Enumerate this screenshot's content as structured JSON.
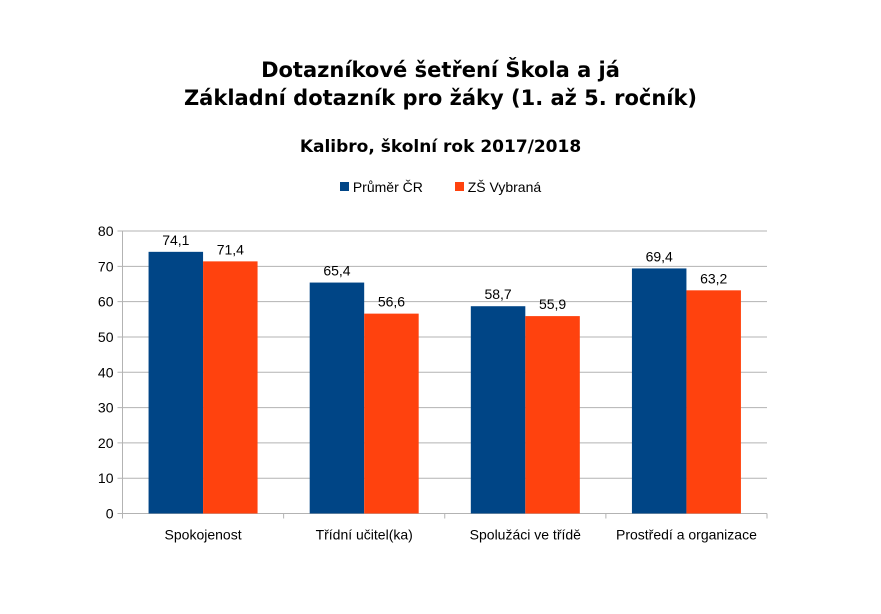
{
  "chart_data": {
    "type": "bar",
    "title": "Dotazníkové šetření Škola a já",
    "title_line2": "Základní dotazník pro žáky (1. až 5. ročník)",
    "subtitle": "Kalibro, školní rok 2017/2018",
    "categories": [
      "Spokojenost",
      "Třídní učitel(ka)",
      "Spolužáci ve třídě",
      "Prostředí a organizace"
    ],
    "series": [
      {
        "name": "Průměr ČR",
        "values": [
          74.1,
          65.4,
          58.7,
          69.4
        ],
        "labels": [
          "74,1",
          "65,4",
          "58,7",
          "69,4"
        ],
        "color": "#004586"
      },
      {
        "name": "ZŠ Vybraná",
        "values": [
          71.4,
          56.6,
          55.9,
          63.2
        ],
        "labels": [
          "71,4",
          "56,6",
          "55,9",
          "63,2"
        ],
        "color": "#ff420e"
      }
    ],
    "ylim": [
      0,
      80
    ],
    "yticks": [
      0,
      10,
      20,
      30,
      40,
      50,
      60,
      70,
      80
    ],
    "grid": true,
    "legend": "top",
    "xlabel": "",
    "ylabel": ""
  }
}
